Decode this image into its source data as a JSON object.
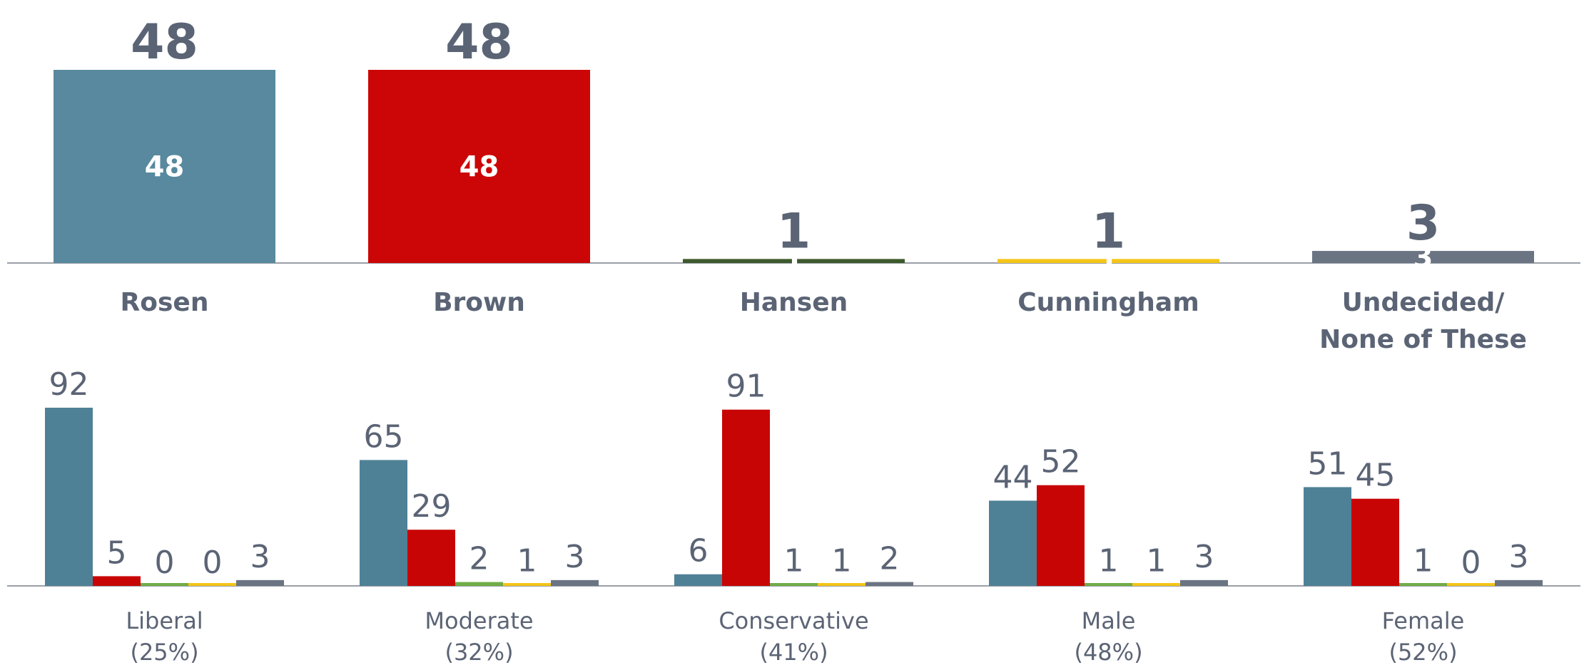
{
  "chart_data": [
    {
      "type": "bar",
      "categories": [
        [
          "Rosen"
        ],
        [
          "Brown"
        ],
        [
          "Hansen"
        ],
        [
          "Cunningham"
        ],
        [
          "Undecided/",
          "None of These"
        ]
      ],
      "values": [
        48,
        48,
        1,
        1,
        3
      ],
      "colors": [
        "#58899e",
        "#cc0606",
        "#3d5a2c",
        "#f5c518",
        "#6b7482"
      ],
      "ylim": [
        0,
        48
      ]
    },
    {
      "type": "grouped-bar",
      "categories": [
        [
          "Liberal",
          "(25%)"
        ],
        [
          "Moderate",
          "(32%)"
        ],
        [
          "Conservative",
          "(41%)"
        ],
        [
          "Male",
          "(48%)"
        ],
        [
          "Female",
          "(52%)"
        ]
      ],
      "series": [
        {
          "color": "#4f8196",
          "values": [
            92,
            65,
            6,
            44,
            51
          ]
        },
        {
          "color": "#c80505",
          "values": [
            5,
            29,
            91,
            52,
            45
          ]
        },
        {
          "color": "#70ad47",
          "values": [
            0,
            2,
            1,
            1,
            1
          ]
        },
        {
          "color": "#f5c518",
          "values": [
            0,
            1,
            1,
            1,
            0
          ]
        },
        {
          "color": "#6b7482",
          "values": [
            3,
            3,
            2,
            3,
            3
          ]
        }
      ],
      "ylim": [
        0,
        92
      ]
    }
  ]
}
